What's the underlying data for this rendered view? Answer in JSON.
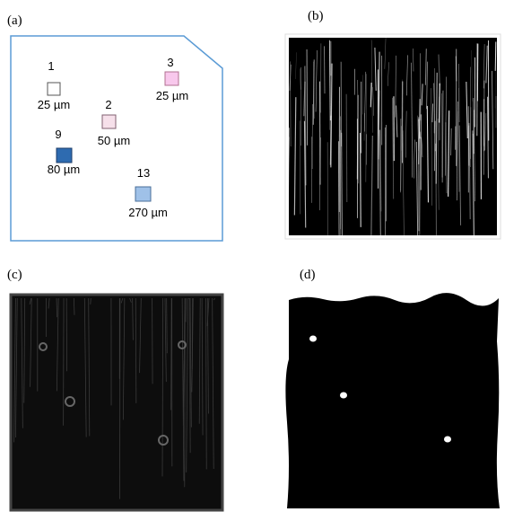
{
  "panels": {
    "a": {
      "label": "(a)",
      "markers": [
        {
          "id": "1",
          "size": "25 µm"
        },
        {
          "id": "3",
          "size": "25 µm"
        },
        {
          "id": "2",
          "size": "50 µm"
        },
        {
          "id": "9",
          "size": "80 µm"
        },
        {
          "id": "13",
          "size": "270 µm"
        }
      ]
    },
    "b": {
      "label": "(b)"
    },
    "c": {
      "label": "(c)"
    },
    "d": {
      "label": "(d)"
    }
  }
}
